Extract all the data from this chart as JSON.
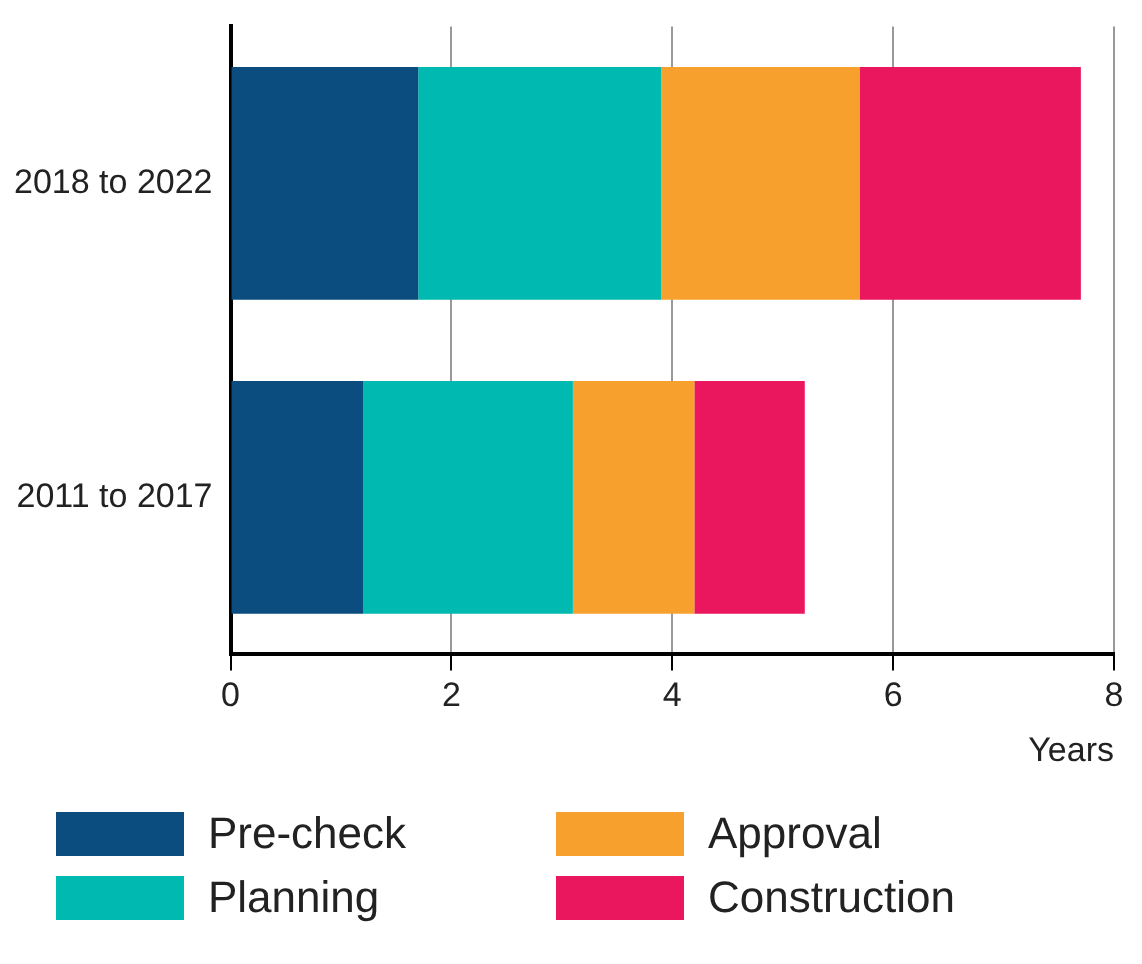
{
  "chart_data": {
    "type": "bar",
    "orientation": "horizontal",
    "stacked": true,
    "xlabel": "Years",
    "categories": [
      "2018 to 2022",
      "2011 to 2017"
    ],
    "series": [
      {
        "name": "Pre-check",
        "color": "#0b4d7e",
        "values": [
          1.7,
          1.2
        ]
      },
      {
        "name": "Planning",
        "color": "#00b9b1",
        "values": [
          2.2,
          1.9
        ]
      },
      {
        "name": "Approval",
        "color": "#f7a02d",
        "values": [
          1.8,
          1.1
        ]
      },
      {
        "name": "Construction",
        "color": "#ea175f",
        "values": [
          2.0,
          1.0
        ]
      }
    ],
    "xlim": [
      0,
      8
    ],
    "xticks": [
      0,
      2,
      4,
      6,
      8
    ],
    "grid": "x",
    "legend": "bottom"
  }
}
